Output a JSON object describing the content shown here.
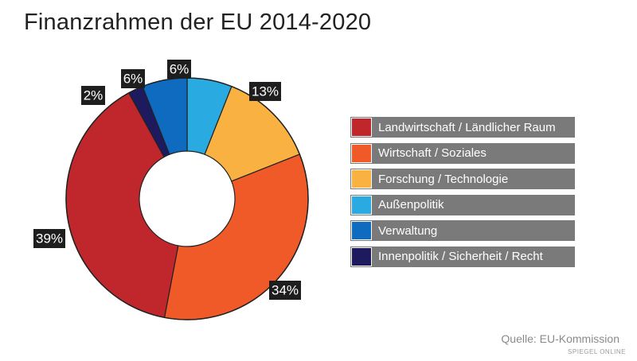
{
  "title": "Finanzrahmen der EU 2014-2020",
  "source": "Quelle: EU-Kommission",
  "brand": "SPIEGEL ONLINE",
  "chart_data": {
    "type": "pie",
    "title": "Finanzrahmen der EU 2014-2020",
    "donut": true,
    "legend_position": "right",
    "series": [
      {
        "name": "Landwirtschaft / Ländlicher Raum",
        "value": 39,
        "label": "39%",
        "color": "#c0272d"
      },
      {
        "name": "Wirtschaft / Soziales",
        "value": 34,
        "label": "34%",
        "color": "#f05a28"
      },
      {
        "name": "Forschung / Technologie",
        "value": 13,
        "label": "13%",
        "color": "#f9b242"
      },
      {
        "name": "Außenpolitik",
        "value": 6,
        "label": "6%",
        "color": "#29abe2"
      },
      {
        "name": "Verwaltung",
        "value": 6,
        "label": "6%",
        "color": "#0e6bbf"
      },
      {
        "name": "Innenpolitik / Sicherheit / Recht",
        "value": 2,
        "label": "2%",
        "color": "#1d1a5e"
      }
    ]
  }
}
